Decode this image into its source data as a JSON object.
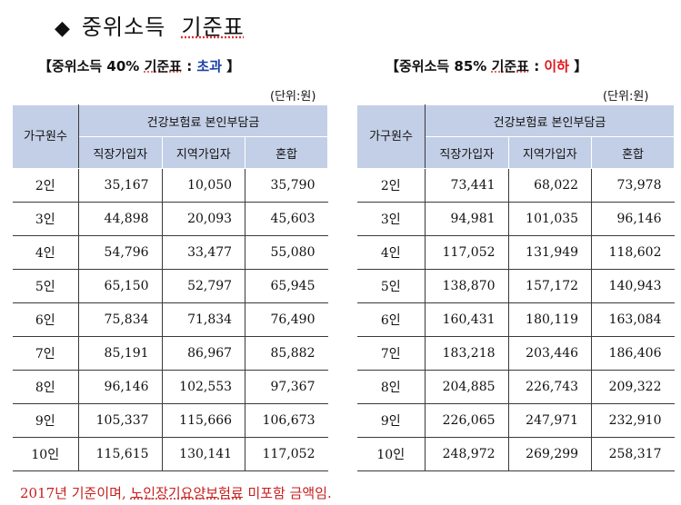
{
  "title": {
    "text": "중위소득",
    "underlined": "기준표"
  },
  "left": {
    "subtitle_prefix": "【중위소득 40%",
    "subtitle_kw": "기준표",
    "subtitle_colon": " : ",
    "status": "초과",
    "subtitle_suffix": " 】",
    "unit": "(단위:원)",
    "headers": {
      "rowhead": "가구원수",
      "group": "건강보험료 본인부담금",
      "cols": [
        "직장가입자",
        "지역가입자",
        "혼합"
      ]
    },
    "rows": [
      {
        "label": "2인",
        "v": [
          "35,167",
          "10,050",
          "35,790"
        ]
      },
      {
        "label": "3인",
        "v": [
          "44,898",
          "20,093",
          "45,603"
        ]
      },
      {
        "label": "4인",
        "v": [
          "54,796",
          "33,477",
          "55,080"
        ]
      },
      {
        "label": "5인",
        "v": [
          "65,150",
          "52,797",
          "65,945"
        ]
      },
      {
        "label": "6인",
        "v": [
          "75,834",
          "71,834",
          "76,490"
        ]
      },
      {
        "label": "7인",
        "v": [
          "85,191",
          "86,967",
          "85,882"
        ]
      },
      {
        "label": "8인",
        "v": [
          "96,146",
          "102,553",
          "97,367"
        ]
      },
      {
        "label": "9인",
        "v": [
          "105,337",
          "115,666",
          "106,673"
        ]
      },
      {
        "label": "10인",
        "v": [
          "115,615",
          "130,141",
          "117,052"
        ]
      }
    ]
  },
  "right": {
    "subtitle_prefix": "【중위소득 85%",
    "subtitle_kw": "기준표",
    "subtitle_colon": " : ",
    "status": "이하",
    "subtitle_suffix": " 】",
    "unit": "(단위:원)",
    "headers": {
      "rowhead": "가구원수",
      "group": "건강보험료 본인부담금",
      "cols": [
        "직장가입자",
        "지역가입자",
        "혼합"
      ]
    },
    "rows": [
      {
        "label": "2인",
        "v": [
          "73,441",
          "68,022",
          "73,978"
        ]
      },
      {
        "label": "3인",
        "v": [
          "94,981",
          "101,035",
          "96,146"
        ]
      },
      {
        "label": "4인",
        "v": [
          "117,052",
          "131,949",
          "118,602"
        ]
      },
      {
        "label": "5인",
        "v": [
          "138,870",
          "157,172",
          "140,943"
        ]
      },
      {
        "label": "6인",
        "v": [
          "160,431",
          "180,119",
          "163,084"
        ]
      },
      {
        "label": "7인",
        "v": [
          "183,218",
          "203,446",
          "186,406"
        ]
      },
      {
        "label": "8인",
        "v": [
          "204,885",
          "226,743",
          "209,322"
        ]
      },
      {
        "label": "9인",
        "v": [
          "226,065",
          "247,971",
          "232,910"
        ]
      },
      {
        "label": "10인",
        "v": [
          "248,972",
          "269,299",
          "258,317"
        ]
      }
    ]
  },
  "footnote": {
    "prefix": "2017년 기준이며, ",
    "underlined": "노인장기요양보험료",
    "suffix": " 미포함 금액임."
  },
  "colors": {
    "header_bg": "#c3cfe6",
    "status_over": "#1a3fa6",
    "status_under": "#e0161b",
    "footnote": "#c81e1e"
  }
}
